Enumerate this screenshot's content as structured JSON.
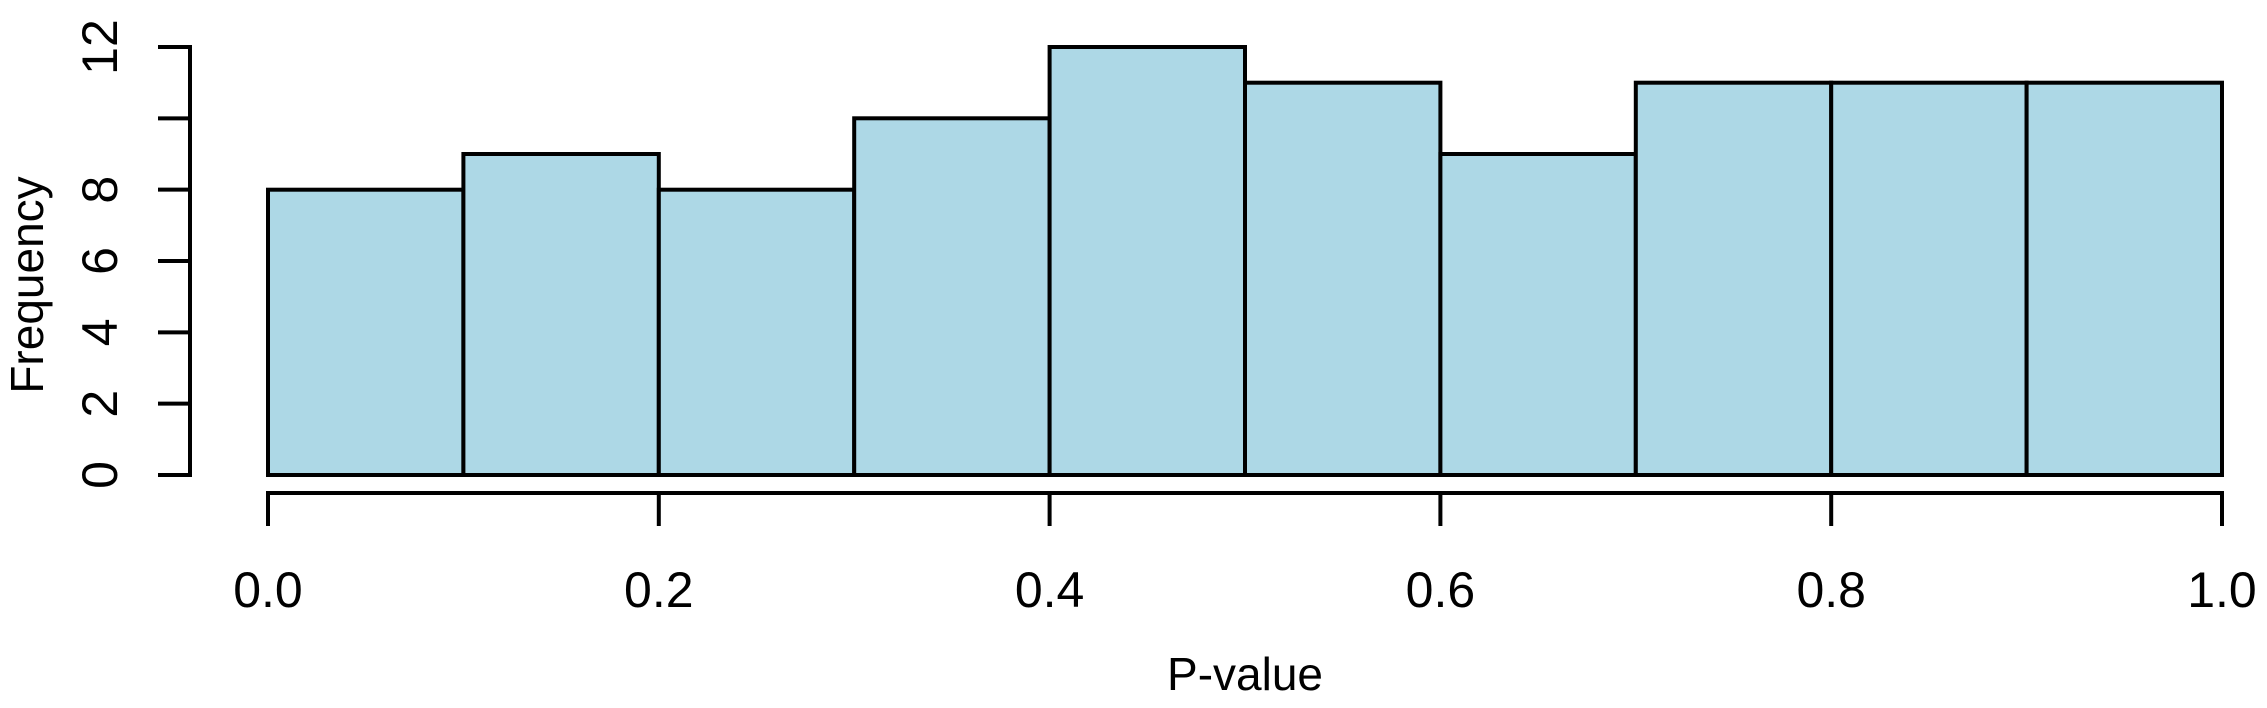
{
  "chart_data": {
    "type": "bar",
    "kind": "histogram",
    "title": "",
    "xlabel": "P-value",
    "ylabel": "Frequency",
    "bin_edges": [
      0.0,
      0.1,
      0.2,
      0.3,
      0.4,
      0.5,
      0.6,
      0.7,
      0.8,
      0.9,
      1.0
    ],
    "values": [
      8,
      9,
      8,
      10,
      12,
      11,
      9,
      11,
      11,
      11
    ],
    "xlim": [
      0.0,
      1.0
    ],
    "ylim": [
      0,
      12
    ],
    "x_ticks": [
      {
        "value": 0.0,
        "label": "0.0"
      },
      {
        "value": 0.2,
        "label": "0.2"
      },
      {
        "value": 0.4,
        "label": "0.4"
      },
      {
        "value": 0.6,
        "label": "0.6"
      },
      {
        "value": 0.8,
        "label": "0.8"
      },
      {
        "value": 1.0,
        "label": "1.0"
      }
    ],
    "y_ticks": [
      {
        "value": 0,
        "label": "0"
      },
      {
        "value": 2,
        "label": "2"
      },
      {
        "value": 4,
        "label": "4"
      },
      {
        "value": 6,
        "label": "6"
      },
      {
        "value": 8,
        "label": "8"
      },
      {
        "value": 10,
        "label": ""
      },
      {
        "value": 12,
        "label": "12"
      }
    ],
    "legend": null,
    "grid": false,
    "colors": {
      "bar_fill": "#ADD8E6",
      "bar_stroke": "#000000",
      "axis": "#000000",
      "text": "#000000",
      "background": "#FFFFFF"
    }
  }
}
